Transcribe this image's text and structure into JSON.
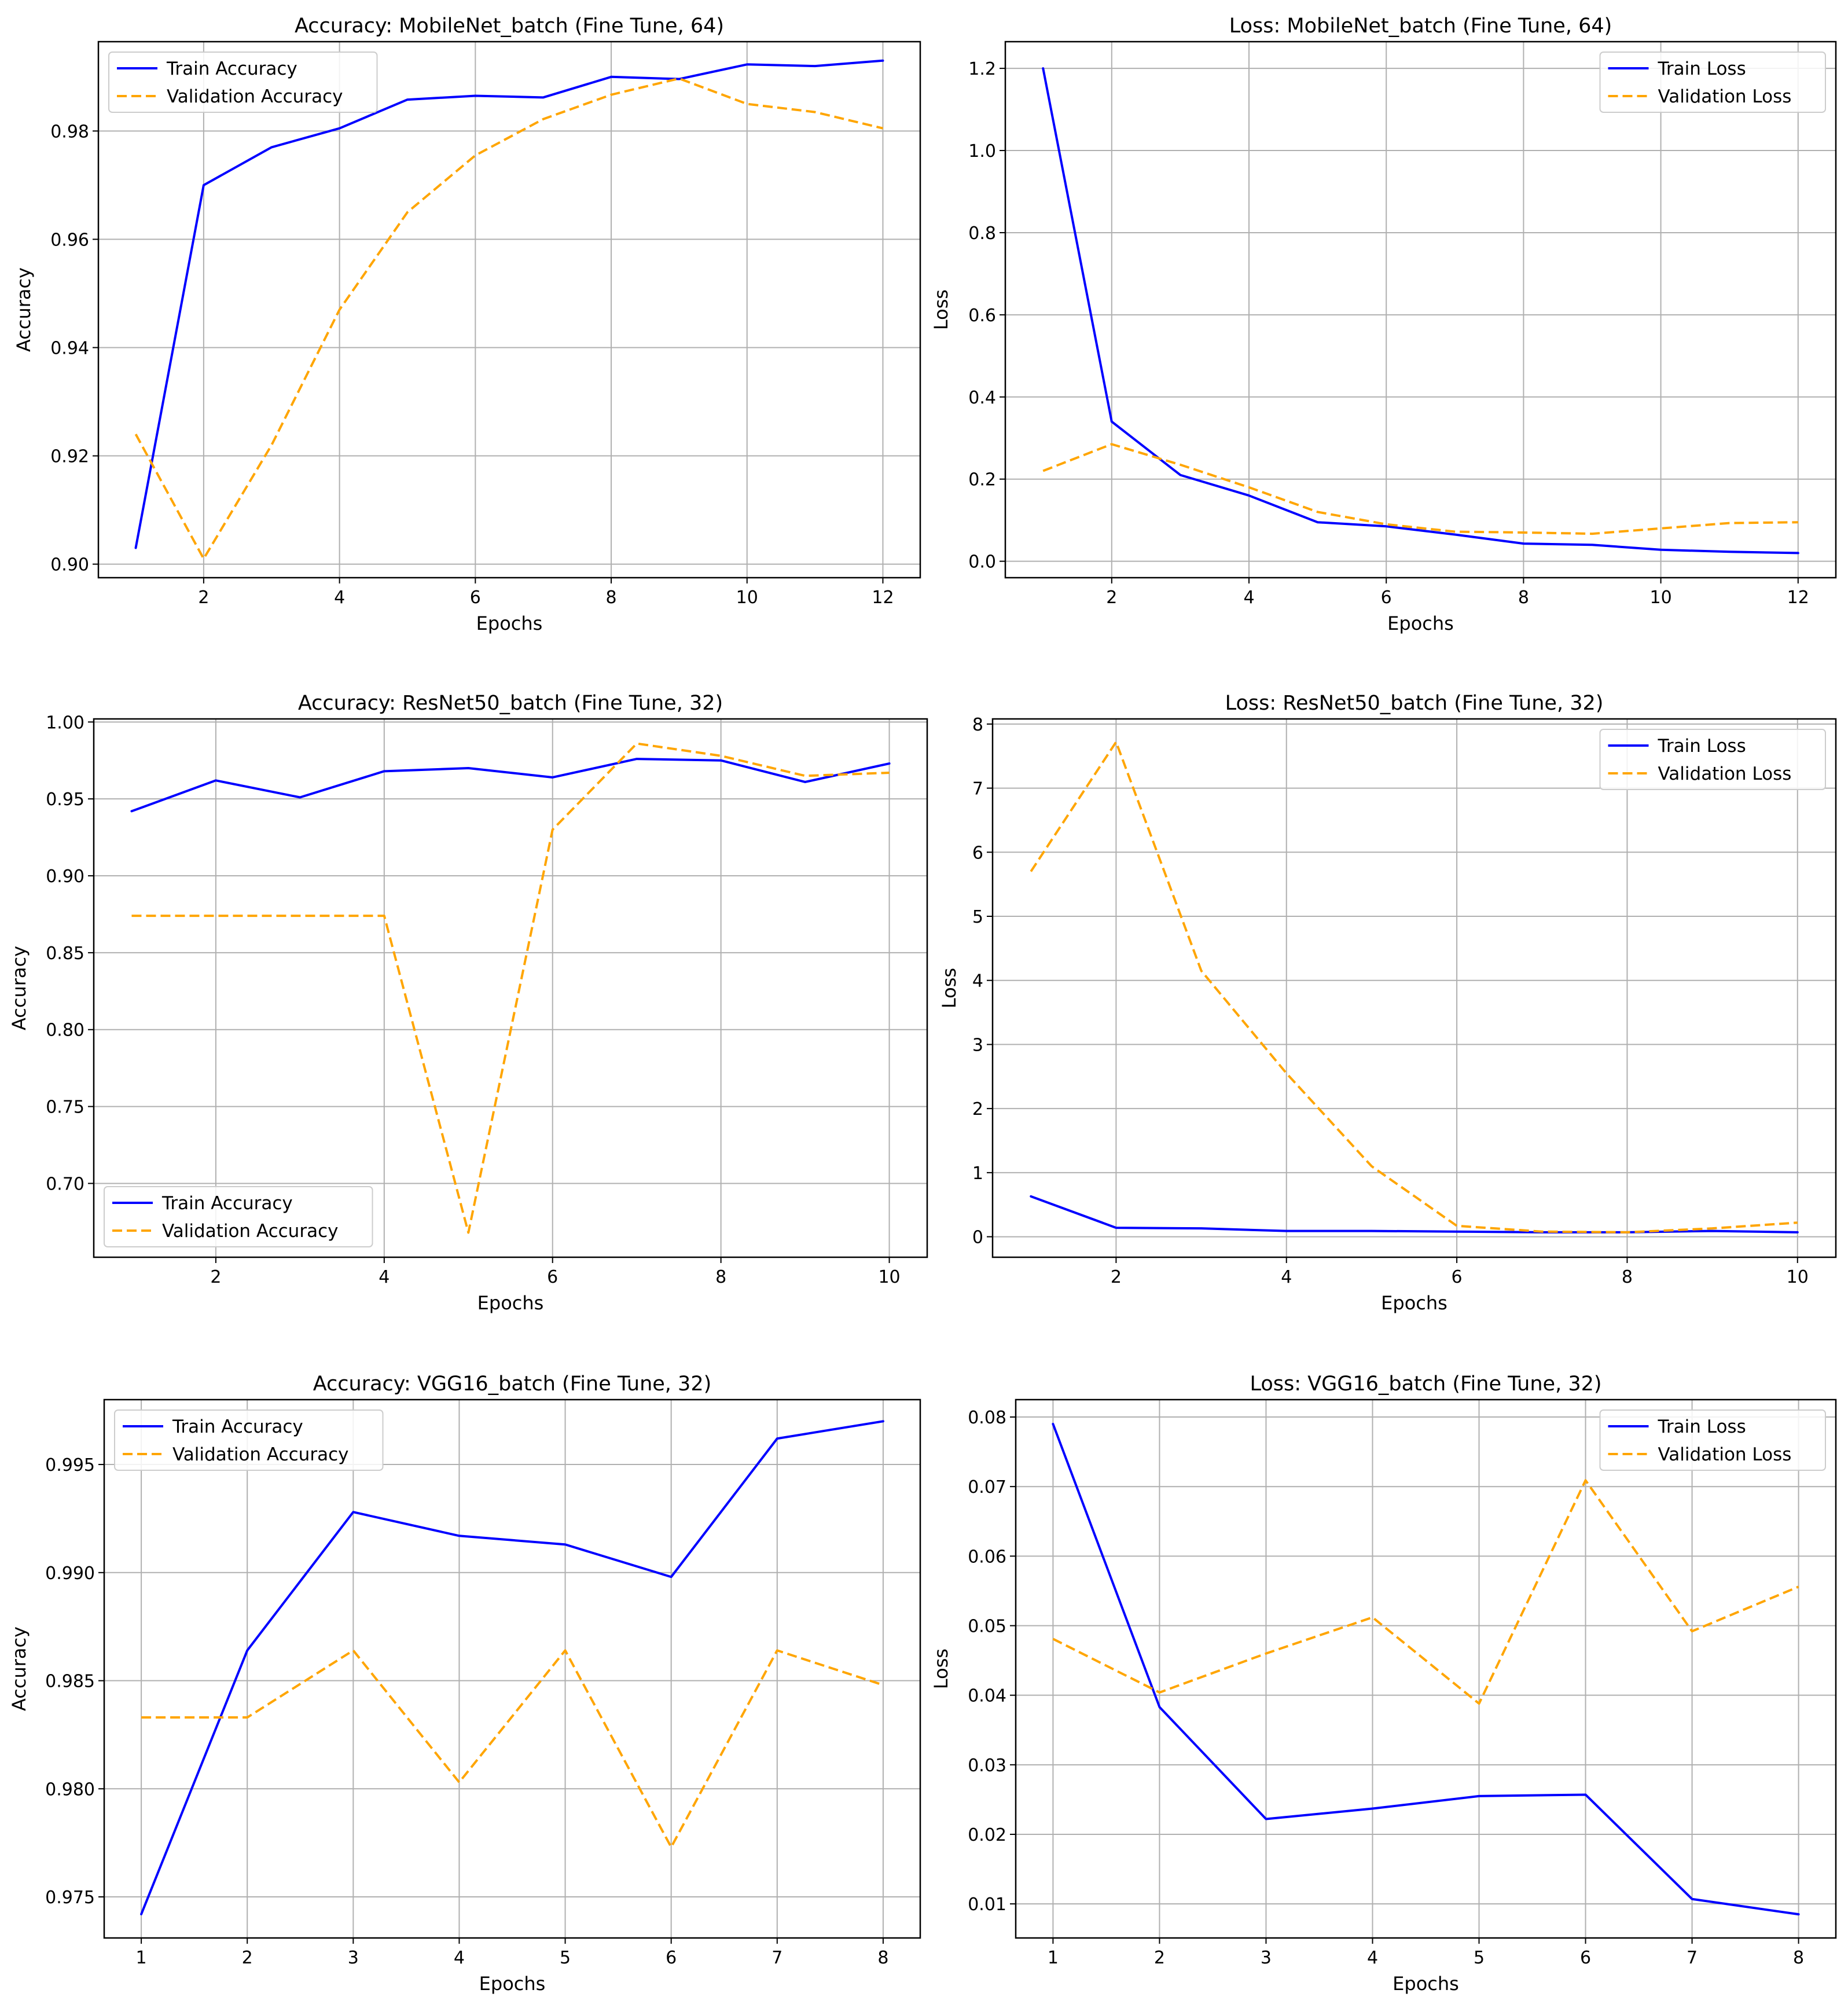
{
  "figure": {
    "colors": {
      "train": "#0000ff",
      "validation": "#ffa500",
      "grid": "#b0b0b0",
      "axes": "#000000"
    }
  },
  "chart_data": [
    {
      "type": "line",
      "title": "Accuracy: MobileNet_batch (Fine Tune, 64)",
      "xlabel": "Epochs",
      "ylabel": "Accuracy",
      "legend_position": "upper-left",
      "xlim": [
        0.45,
        12.55
      ],
      "ylim": [
        0.8975,
        0.9965
      ],
      "xticks": [
        2,
        4,
        6,
        8,
        10,
        12
      ],
      "xtick_labels": [
        "2",
        "4",
        "6",
        "8",
        "10",
        "12"
      ],
      "yticks": [
        0.9,
        0.92,
        0.94,
        0.96,
        0.98
      ],
      "ytick_labels": [
        "0.90",
        "0.92",
        "0.94",
        "0.96",
        "0.98"
      ],
      "x": [
        1,
        2,
        3,
        4,
        5,
        6,
        7,
        8,
        9,
        10,
        11,
        12
      ],
      "series": [
        {
          "name": "Train Accuracy",
          "style": "solid",
          "color": "#0000ff",
          "values": [
            0.903,
            0.97,
            0.977,
            0.9805,
            0.9858,
            0.9865,
            0.9862,
            0.99,
            0.9896,
            0.9923,
            0.992,
            0.993
          ]
        },
        {
          "name": "Validation Accuracy",
          "style": "dashed",
          "color": "#ffa500",
          "values": [
            0.924,
            0.901,
            0.922,
            0.947,
            0.965,
            0.9755,
            0.9822,
            0.9867,
            0.9897,
            0.985,
            0.9835,
            0.9805
          ]
        }
      ]
    },
    {
      "type": "line",
      "title": "Loss: MobileNet_batch (Fine Tune, 64)",
      "xlabel": "Epochs",
      "ylabel": "Loss",
      "legend_position": "upper-right",
      "xlim": [
        0.45,
        12.55
      ],
      "ylim": [
        -0.04,
        1.265
      ],
      "xticks": [
        2,
        4,
        6,
        8,
        10,
        12
      ],
      "xtick_labels": [
        "2",
        "4",
        "6",
        "8",
        "10",
        "12"
      ],
      "yticks": [
        0.0,
        0.2,
        0.4,
        0.6,
        0.8,
        1.0,
        1.2
      ],
      "ytick_labels": [
        "0.0",
        "0.2",
        "0.4",
        "0.6",
        "0.8",
        "1.0",
        "1.2"
      ],
      "x": [
        1,
        2,
        3,
        4,
        5,
        6,
        7,
        8,
        9,
        10,
        11,
        12
      ],
      "series": [
        {
          "name": "Train Loss",
          "style": "solid",
          "color": "#0000ff",
          "values": [
            1.2,
            0.34,
            0.21,
            0.16,
            0.095,
            0.085,
            0.065,
            0.043,
            0.04,
            0.028,
            0.023,
            0.02
          ]
        },
        {
          "name": "Validation Loss",
          "style": "dashed",
          "color": "#ffa500",
          "values": [
            0.22,
            0.285,
            0.235,
            0.18,
            0.12,
            0.09,
            0.072,
            0.07,
            0.067,
            0.08,
            0.093,
            0.095
          ]
        }
      ]
    },
    {
      "type": "line",
      "title": "Accuracy: ResNet50_batch (Fine Tune, 32)",
      "xlabel": "Epochs",
      "ylabel": "Accuracy",
      "legend_position": "lower-left",
      "xlim": [
        0.55,
        10.45
      ],
      "ylim": [
        0.652,
        1.002
      ],
      "xticks": [
        2,
        4,
        6,
        8,
        10
      ],
      "xtick_labels": [
        "2",
        "4",
        "6",
        "8",
        "10"
      ],
      "yticks": [
        0.7,
        0.75,
        0.8,
        0.85,
        0.9,
        0.95,
        1.0
      ],
      "ytick_labels": [
        "0.70",
        "0.75",
        "0.80",
        "0.85",
        "0.90",
        "0.95",
        "1.00"
      ],
      "x": [
        1,
        2,
        3,
        4,
        5,
        6,
        7,
        8,
        9,
        10
      ],
      "series": [
        {
          "name": "Train Accuracy",
          "style": "solid",
          "color": "#0000ff",
          "values": [
            0.942,
            0.962,
            0.951,
            0.968,
            0.97,
            0.964,
            0.976,
            0.975,
            0.961,
            0.973
          ]
        },
        {
          "name": "Validation Accuracy",
          "style": "dashed",
          "color": "#ffa500",
          "values": [
            0.874,
            0.874,
            0.874,
            0.874,
            0.668,
            0.93,
            0.986,
            0.978,
            0.965,
            0.967
          ]
        }
      ]
    },
    {
      "type": "line",
      "title": "Loss: ResNet50_batch (Fine Tune, 32)",
      "xlabel": "Epochs",
      "ylabel": "Loss",
      "legend_position": "upper-right",
      "xlim": [
        0.55,
        10.45
      ],
      "ylim": [
        -0.32,
        8.08
      ],
      "xticks": [
        2,
        4,
        6,
        8,
        10
      ],
      "xtick_labels": [
        "2",
        "4",
        "6",
        "8",
        "10"
      ],
      "yticks": [
        0,
        1,
        2,
        3,
        4,
        5,
        6,
        7,
        8
      ],
      "ytick_labels": [
        "0",
        "1",
        "2",
        "3",
        "4",
        "5",
        "6",
        "7",
        "8"
      ],
      "x": [
        1,
        2,
        3,
        4,
        5,
        6,
        7,
        8,
        9,
        10
      ],
      "series": [
        {
          "name": "Train Loss",
          "style": "solid",
          "color": "#0000ff",
          "values": [
            0.63,
            0.14,
            0.13,
            0.09,
            0.09,
            0.08,
            0.07,
            0.07,
            0.09,
            0.07
          ]
        },
        {
          "name": "Validation Loss",
          "style": "dashed",
          "color": "#ffa500",
          "values": [
            5.7,
            7.72,
            4.15,
            2.55,
            1.1,
            0.17,
            0.08,
            0.07,
            0.13,
            0.22
          ]
        }
      ]
    },
    {
      "type": "line",
      "title": "Accuracy: VGG16_batch (Fine Tune, 32)",
      "xlabel": "Epochs",
      "ylabel": "Accuracy",
      "legend_position": "upper-left",
      "xlim": [
        0.65,
        8.35
      ],
      "ylim": [
        0.9731,
        0.998
      ],
      "xticks": [
        1,
        2,
        3,
        4,
        5,
        6,
        7,
        8
      ],
      "xtick_labels": [
        "1",
        "2",
        "3",
        "4",
        "5",
        "6",
        "7",
        "8"
      ],
      "yticks": [
        0.975,
        0.98,
        0.985,
        0.99,
        0.995
      ],
      "ytick_labels": [
        "0.975",
        "0.980",
        "0.985",
        "0.990",
        "0.995"
      ],
      "x": [
        1,
        2,
        3,
        4,
        5,
        6,
        7,
        8
      ],
      "series": [
        {
          "name": "Train Accuracy",
          "style": "solid",
          "color": "#0000ff",
          "values": [
            0.9742,
            0.9864,
            0.9928,
            0.9917,
            0.9913,
            0.9898,
            0.9962,
            0.997
          ]
        },
        {
          "name": "Validation Accuracy",
          "style": "dashed",
          "color": "#ffa500",
          "values": [
            0.9833,
            0.9833,
            0.9864,
            0.9803,
            0.9864,
            0.9773,
            0.9864,
            0.9848
          ]
        }
      ]
    },
    {
      "type": "line",
      "title": "Loss: VGG16_batch (Fine Tune, 32)",
      "xlabel": "Epochs",
      "ylabel": "Loss",
      "legend_position": "upper-right",
      "xlim": [
        0.65,
        8.35
      ],
      "ylim": [
        0.0051,
        0.0825
      ],
      "xticks": [
        1,
        2,
        3,
        4,
        5,
        6,
        7,
        8
      ],
      "xtick_labels": [
        "1",
        "2",
        "3",
        "4",
        "5",
        "6",
        "7",
        "8"
      ],
      "yticks": [
        0.01,
        0.02,
        0.03,
        0.04,
        0.05,
        0.06,
        0.07,
        0.08
      ],
      "ytick_labels": [
        "0.01",
        "0.02",
        "0.03",
        "0.04",
        "0.05",
        "0.06",
        "0.07",
        "0.08"
      ],
      "x": [
        1,
        2,
        3,
        4,
        5,
        6,
        7,
        8
      ],
      "series": [
        {
          "name": "Train Loss",
          "style": "solid",
          "color": "#0000ff",
          "values": [
            0.079,
            0.0383,
            0.0222,
            0.0237,
            0.0255,
            0.0257,
            0.0107,
            0.0085
          ]
        },
        {
          "name": "Validation Loss",
          "style": "dashed",
          "color": "#ffa500",
          "values": [
            0.0481,
            0.0404,
            0.046,
            0.0512,
            0.0388,
            0.0709,
            0.0492,
            0.0556
          ]
        }
      ]
    }
  ]
}
